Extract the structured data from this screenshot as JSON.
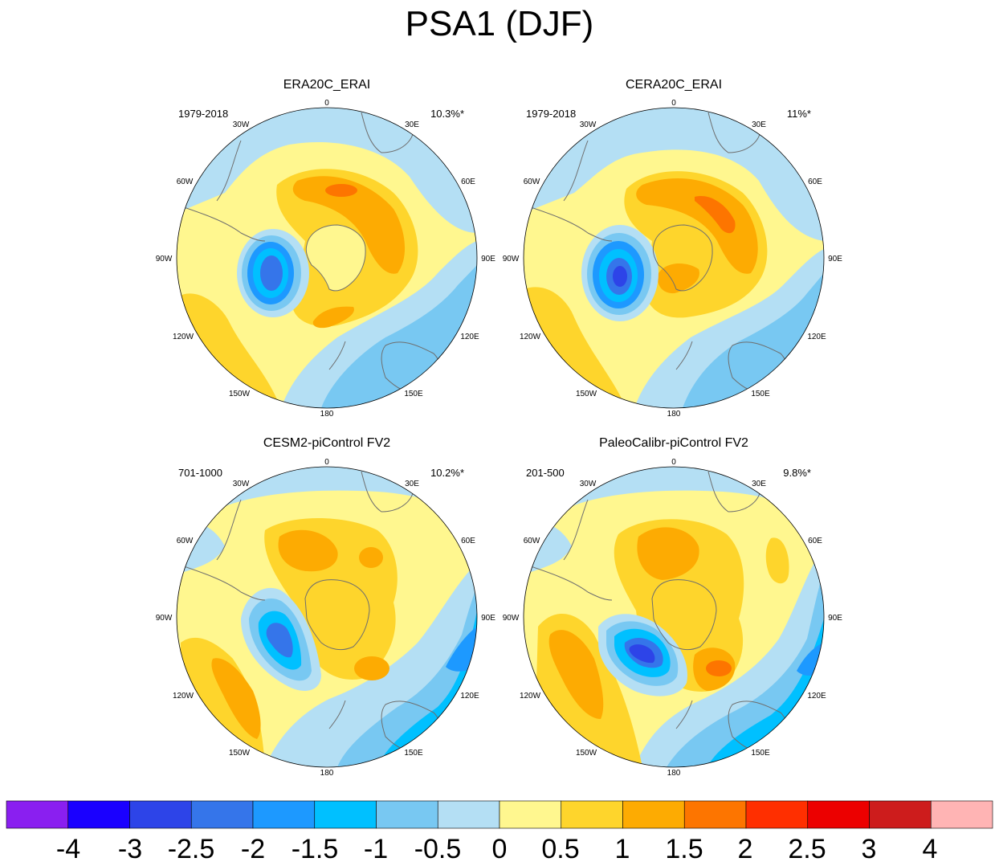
{
  "figure": {
    "title": "PSA1 (DJF)"
  },
  "lon_labels": [
    "0",
    "30E",
    "60E",
    "90E",
    "120E",
    "150E",
    "180",
    "150W",
    "120W",
    "90W",
    "60W",
    "30W"
  ],
  "panels": [
    {
      "title": "ERA20C_ERAI",
      "period": "1979-2018",
      "variance": "10.3%*"
    },
    {
      "title": "CERA20C_ERAI",
      "period": "1979-2018",
      "variance": "11%*"
    },
    {
      "title": "CESM2-piControl FV2",
      "period": "701-1000",
      "variance": "10.2%*"
    },
    {
      "title": "PaleoCalibr-piControl FV2",
      "period": "201-500",
      "variance": "9.8%*"
    }
  ],
  "colorbar": {
    "labels": [
      "-4",
      "-3",
      "-2.5",
      "-2",
      "-1.5",
      "-1",
      "-0.5",
      "0",
      "0.5",
      "1",
      "1.5",
      "2",
      "2.5",
      "3",
      "4"
    ],
    "colors": [
      "#8a1ff0",
      "#1a00ff",
      "#2d44e8",
      "#3575ea",
      "#1d99ff",
      "#00c0ff",
      "#78c8f2",
      "#b4dff4",
      "#fff78f",
      "#fed52c",
      "#fdab02",
      "#fd7500",
      "#ff2f00",
      "#ec0000",
      "#cd1c1c",
      "#ffb4b4"
    ]
  },
  "colors": {
    "background": "#ffffff",
    "coast": "#6e6e6e",
    "border": "#000000"
  }
}
